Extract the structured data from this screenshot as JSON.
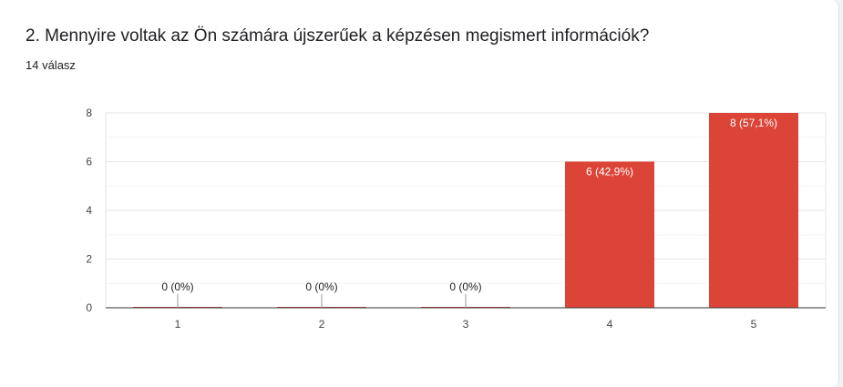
{
  "question": {
    "title": "2. Mennyire voltak az Ön számára újszerűek a képzésen megismert információk?",
    "response_count": "14 válasz"
  },
  "chart_data": {
    "type": "bar",
    "title": "",
    "xlabel": "",
    "ylabel": "",
    "categories": [
      "1",
      "2",
      "3",
      "4",
      "5"
    ],
    "values": [
      0,
      0,
      0,
      6,
      8
    ],
    "data_labels": [
      "0 (0%)",
      "0 (0%)",
      "0 (0%)",
      "6 (42,9%)",
      "8 (57,1%)"
    ],
    "ylim": [
      0,
      8
    ],
    "yticks": [
      0,
      2,
      4,
      6,
      8
    ],
    "grid": true,
    "bar_color": "#dc4437",
    "label_color_inside": "#ffffff",
    "label_color_outside": "#202124"
  }
}
